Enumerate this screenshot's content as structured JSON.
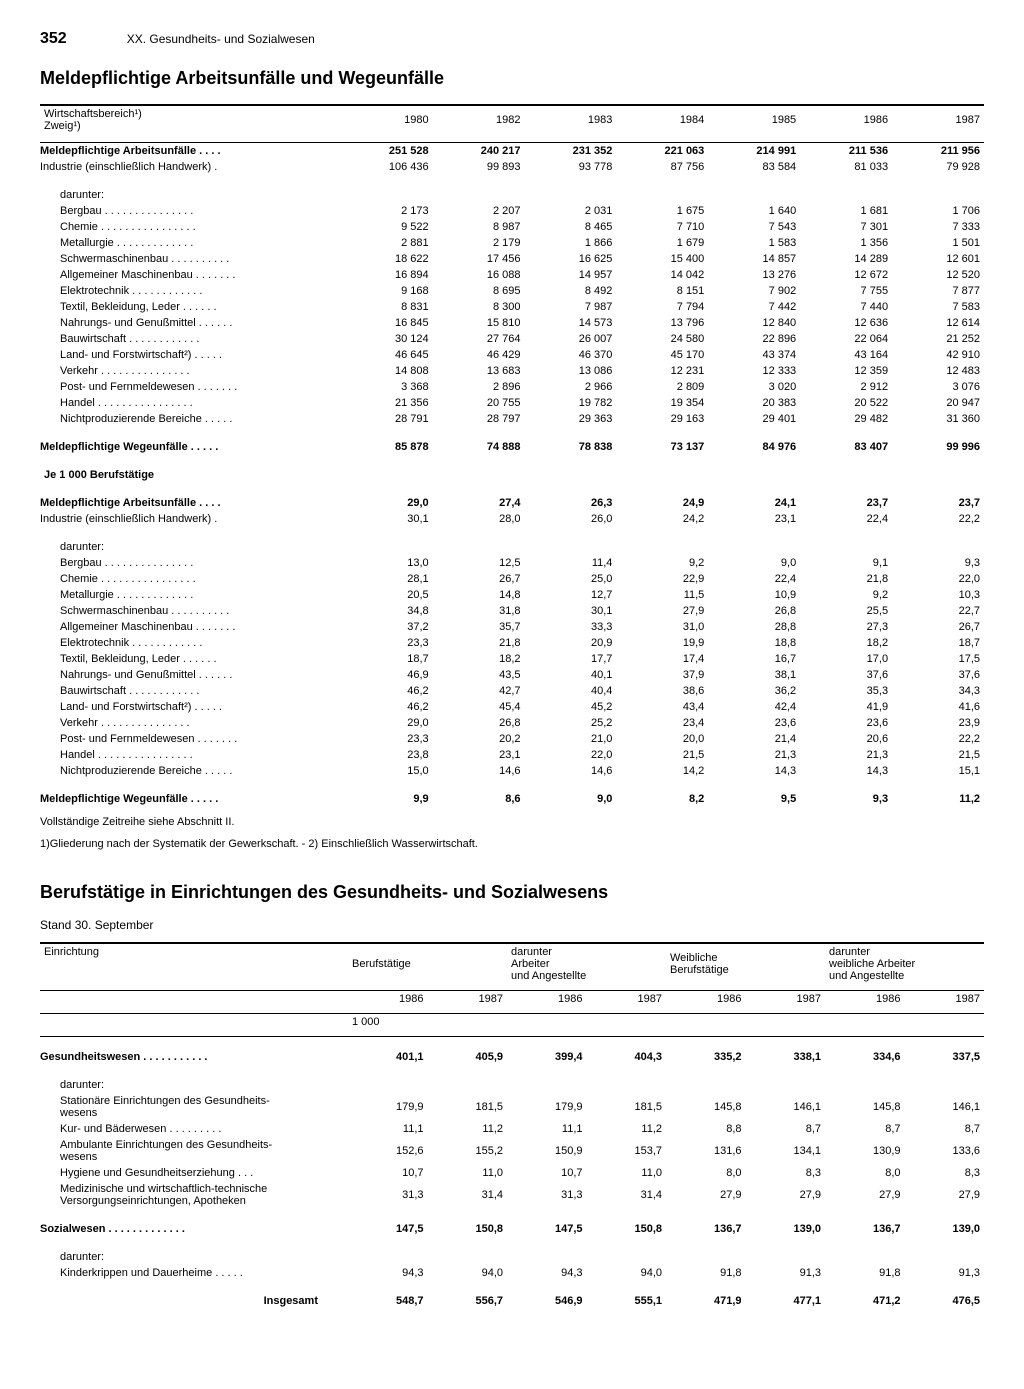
{
  "page_number": "352",
  "chapter": "XX. Gesundheits- und Sozialwesen",
  "table1": {
    "title": "Meldepflichtige Arbeitsunfälle und Wegeunfälle",
    "row_label_header": "Wirtschaftsbereich¹)",
    "row_label_sub": "Zweig¹)",
    "years": [
      "1980",
      "1982",
      "1983",
      "1984",
      "1985",
      "1986",
      "1987"
    ],
    "block1": {
      "total": {
        "label": "Meldepflichtige Arbeitsunfälle",
        "vals": [
          "251 528",
          "240 217",
          "231 352",
          "221 063",
          "214 991",
          "211 536",
          "211 956"
        ]
      },
      "industrie": {
        "label": "Industrie (einschließlich Handwerk)",
        "vals": [
          "106 436",
          "99 893",
          "93 778",
          "87 756",
          "83 584",
          "81 033",
          "79 928"
        ]
      },
      "darunter": "darunter:",
      "rows": [
        {
          "label": "Bergbau",
          "vals": [
            "2 173",
            "2 207",
            "2 031",
            "1 675",
            "1 640",
            "1 681",
            "1 706"
          ]
        },
        {
          "label": "Chemie",
          "vals": [
            "9 522",
            "8 987",
            "8 465",
            "7 710",
            "7 543",
            "7 301",
            "7 333"
          ]
        },
        {
          "label": "Metallurgie",
          "vals": [
            "2 881",
            "2 179",
            "1 866",
            "1 679",
            "1 583",
            "1 356",
            "1 501"
          ]
        },
        {
          "label": "Schwermaschinenbau",
          "vals": [
            "18 622",
            "17 456",
            "16 625",
            "15 400",
            "14 857",
            "14 289",
            "12 601"
          ]
        },
        {
          "label": "Allgemeiner Maschinenbau",
          "vals": [
            "16 894",
            "16 088",
            "14 957",
            "14 042",
            "13 276",
            "12 672",
            "12 520"
          ]
        },
        {
          "label": "Elektrotechnik",
          "vals": [
            "9 168",
            "8 695",
            "8 492",
            "8 151",
            "7 902",
            "7 755",
            "7 877"
          ]
        },
        {
          "label": "Textil, Bekleidung, Leder",
          "vals": [
            "8 831",
            "8 300",
            "7 987",
            "7 794",
            "7 442",
            "7 440",
            "7 583"
          ]
        },
        {
          "label": "Nahrungs- und Genußmittel",
          "vals": [
            "16 845",
            "15 810",
            "14 573",
            "13 796",
            "12 840",
            "12 636",
            "12 614"
          ]
        },
        {
          "label": "Bauwirtschaft",
          "vals": [
            "30 124",
            "27 764",
            "26 007",
            "24 580",
            "22 896",
            "22 064",
            "21 252"
          ]
        },
        {
          "label": "Land- und Forstwirtschaft²)",
          "vals": [
            "46 645",
            "46 429",
            "46 370",
            "45 170",
            "43 374",
            "43 164",
            "42 910"
          ]
        },
        {
          "label": "Verkehr",
          "vals": [
            "14 808",
            "13 683",
            "13 086",
            "12 231",
            "12 333",
            "12 359",
            "12 483"
          ]
        },
        {
          "label": "Post- und Fernmeldewesen",
          "vals": [
            "3 368",
            "2 896",
            "2 966",
            "2 809",
            "3 020",
            "2 912",
            "3 076"
          ]
        },
        {
          "label": "Handel",
          "vals": [
            "21 356",
            "20 755",
            "19 782",
            "19 354",
            "20 383",
            "20 522",
            "20 947"
          ]
        },
        {
          "label": "Nichtproduzierende Bereiche",
          "vals": [
            "28 791",
            "28 797",
            "29 363",
            "29 163",
            "29 401",
            "29 482",
            "31 360"
          ]
        }
      ],
      "wege": {
        "label": "Meldepflichtige Wegeunfälle",
        "vals": [
          "85 878",
          "74 888",
          "78 838",
          "73 137",
          "84 976",
          "83 407",
          "99 996"
        ]
      }
    },
    "block2_header": "Je 1 000 Berufstätige",
    "block2": {
      "total": {
        "label": "Meldepflichtige Arbeitsunfälle",
        "vals": [
          "29,0",
          "27,4",
          "26,3",
          "24,9",
          "24,1",
          "23,7",
          "23,7"
        ]
      },
      "industrie": {
        "label": "Industrie (einschließlich Handwerk)",
        "vals": [
          "30,1",
          "28,0",
          "26,0",
          "24,2",
          "23,1",
          "22,4",
          "22,2"
        ]
      },
      "darunter": "darunter:",
      "rows": [
        {
          "label": "Bergbau",
          "vals": [
            "13,0",
            "12,5",
            "11,4",
            "9,2",
            "9,0",
            "9,1",
            "9,3"
          ]
        },
        {
          "label": "Chemie",
          "vals": [
            "28,1",
            "26,7",
            "25,0",
            "22,9",
            "22,4",
            "21,8",
            "22,0"
          ]
        },
        {
          "label": "Metallurgie",
          "vals": [
            "20,5",
            "14,8",
            "12,7",
            "11,5",
            "10,9",
            "9,2",
            "10,3"
          ]
        },
        {
          "label": "Schwermaschinenbau",
          "vals": [
            "34,8",
            "31,8",
            "30,1",
            "27,9",
            "26,8",
            "25,5",
            "22,7"
          ]
        },
        {
          "label": "Allgemeiner Maschinenbau",
          "vals": [
            "37,2",
            "35,7",
            "33,3",
            "31,0",
            "28,8",
            "27,3",
            "26,7"
          ]
        },
        {
          "label": "Elektrotechnik",
          "vals": [
            "23,3",
            "21,8",
            "20,9",
            "19,9",
            "18,8",
            "18,2",
            "18,7"
          ]
        },
        {
          "label": "Textil, Bekleidung, Leder",
          "vals": [
            "18,7",
            "18,2",
            "17,7",
            "17,4",
            "16,7",
            "17,0",
            "17,5"
          ]
        },
        {
          "label": "Nahrungs- und Genußmittel",
          "vals": [
            "46,9",
            "43,5",
            "40,1",
            "37,9",
            "38,1",
            "37,6",
            "37,6"
          ]
        },
        {
          "label": "Bauwirtschaft",
          "vals": [
            "46,2",
            "42,7",
            "40,4",
            "38,6",
            "36,2",
            "35,3",
            "34,3"
          ]
        },
        {
          "label": "Land- und Forstwirtschaft²)",
          "vals": [
            "46,2",
            "45,4",
            "45,2",
            "43,4",
            "42,4",
            "41,9",
            "41,6"
          ]
        },
        {
          "label": "Verkehr",
          "vals": [
            "29,0",
            "26,8",
            "25,2",
            "23,4",
            "23,6",
            "23,6",
            "23,9"
          ]
        },
        {
          "label": "Post- und Fernmeldewesen",
          "vals": [
            "23,3",
            "20,2",
            "21,0",
            "20,0",
            "21,4",
            "20,6",
            "22,2"
          ]
        },
        {
          "label": "Handel",
          "vals": [
            "23,8",
            "23,1",
            "22,0",
            "21,5",
            "21,3",
            "21,3",
            "21,5"
          ]
        },
        {
          "label": "Nichtproduzierende Bereiche",
          "vals": [
            "15,0",
            "14,6",
            "14,6",
            "14,2",
            "14,3",
            "14,3",
            "15,1"
          ]
        }
      ],
      "wege": {
        "label": "Meldepflichtige Wegeunfälle",
        "vals": [
          "9,9",
          "8,6",
          "9,0",
          "8,2",
          "9,5",
          "9,3",
          "11,2"
        ]
      }
    },
    "footnote1": "Vollständige Zeitreihe siehe Abschnitt II.",
    "footnote2": "1)Gliederung nach der Systematik der Gewerkschaft. - 2) Einschließlich Wasserwirtschaft."
  },
  "table2": {
    "title": "Berufstätige in Einrichtungen des Gesundheits- und Sozialwesens",
    "subtitle": "Stand 30. September",
    "row_label_header": "Einrichtung",
    "col_groups": [
      "Berufstätige",
      "darunter\nArbeiter\nund Angestellte",
      "Weibliche\nBerufstätige",
      "darunter\nweibliche Arbeiter\nund Angestellte"
    ],
    "sub_years": [
      "1986",
      "1987",
      "1986",
      "1987",
      "1986",
      "1987",
      "1986",
      "1987"
    ],
    "unit": "1 000",
    "gesundheit": {
      "label": "Gesundheitswesen",
      "vals": [
        "401,1",
        "405,9",
        "399,4",
        "404,3",
        "335,2",
        "338,1",
        "334,6",
        "337,5"
      ]
    },
    "darunter": "darunter:",
    "rows": [
      {
        "label": "Stationäre Einrichtungen des Gesundheits-\nwesens",
        "vals": [
          "179,9",
          "181,5",
          "179,9",
          "181,5",
          "145,8",
          "146,1",
          "145,8",
          "146,1"
        ]
      },
      {
        "label": "Kur- und Bäderwesen",
        "vals": [
          "11,1",
          "11,2",
          "11,1",
          "11,2",
          "8,8",
          "8,7",
          "8,7",
          "8,7"
        ]
      },
      {
        "label": "Ambulante Einrichtungen des Gesundheits-\nwesens",
        "vals": [
          "152,6",
          "155,2",
          "150,9",
          "153,7",
          "131,6",
          "134,1",
          "130,9",
          "133,6"
        ]
      },
      {
        "label": "Hygiene und Gesundheitserziehung",
        "vals": [
          "10,7",
          "11,0",
          "10,7",
          "11,0",
          "8,0",
          "8,3",
          "8,0",
          "8,3"
        ]
      },
      {
        "label": "Medizinische und wirtschaftlich-technische\nVersorgungseinrichtungen, Apotheken",
        "vals": [
          "31,3",
          "31,4",
          "31,3",
          "31,4",
          "27,9",
          "27,9",
          "27,9",
          "27,9"
        ]
      }
    ],
    "sozial": {
      "label": "Sozialwesen",
      "vals": [
        "147,5",
        "150,8",
        "147,5",
        "150,8",
        "136,7",
        "139,0",
        "136,7",
        "139,0"
      ]
    },
    "darunter2": "darunter:",
    "rows2": [
      {
        "label": "Kinderkrippen und Dauerheime",
        "vals": [
          "94,3",
          "94,0",
          "94,3",
          "94,0",
          "91,8",
          "91,3",
          "91,8",
          "91,3"
        ]
      }
    ],
    "insgesamt": {
      "label": "Insgesamt",
      "vals": [
        "548,7",
        "556,7",
        "546,9",
        "555,1",
        "471,9",
        "477,1",
        "471,2",
        "476,5"
      ]
    }
  }
}
